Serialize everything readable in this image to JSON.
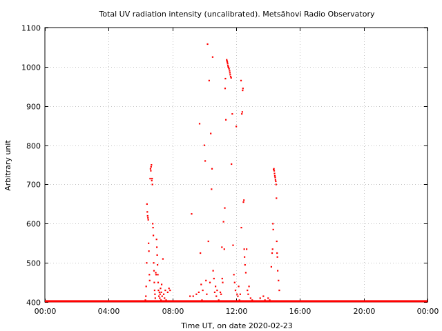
{
  "chart_data": {
    "type": "scatter",
    "title": "Total UV radiation intensity (uncalibrated). Metsähovi Radio Observatory",
    "xlabel": "Time UT, on date 2020-02-23",
    "ylabel": "Arbitrary unit",
    "xlim_hours": [
      0,
      24
    ],
    "ylim": [
      400,
      1100
    ],
    "x_ticks": [
      {
        "h": 0,
        "label": "00:00"
      },
      {
        "h": 4,
        "label": "04:00"
      },
      {
        "h": 8,
        "label": "08:00"
      },
      {
        "h": 12,
        "label": "12:00"
      },
      {
        "h": 16,
        "label": "16:00"
      },
      {
        "h": 20,
        "label": "20:00"
      },
      {
        "h": 24,
        "label": "00:00"
      }
    ],
    "y_ticks": [
      400,
      500,
      600,
      700,
      800,
      900,
      1000,
      1100
    ],
    "grid": true,
    "color": "#ff0000",
    "baseline": {
      "value": 402,
      "from_h": 0,
      "to_h": 24
    },
    "points": [
      [
        6.3,
        405
      ],
      [
        6.33,
        415
      ],
      [
        6.35,
        440
      ],
      [
        6.38,
        500
      ],
      [
        6.4,
        650
      ],
      [
        6.42,
        630
      ],
      [
        6.44,
        620
      ],
      [
        6.46,
        615
      ],
      [
        6.48,
        610
      ],
      [
        6.5,
        550
      ],
      [
        6.52,
        530
      ],
      [
        6.55,
        470
      ],
      [
        6.57,
        455
      ],
      [
        6.6,
        715
      ],
      [
        6.62,
        740
      ],
      [
        6.64,
        735
      ],
      [
        6.66,
        745
      ],
      [
        6.68,
        750
      ],
      [
        6.7,
        710
      ],
      [
        6.72,
        715
      ],
      [
        6.74,
        700
      ],
      [
        6.76,
        600
      ],
      [
        6.78,
        590
      ],
      [
        6.8,
        570
      ],
      [
        6.82,
        500
      ],
      [
        6.84,
        480
      ],
      [
        6.86,
        450
      ],
      [
        6.88,
        430
      ],
      [
        6.9,
        420
      ],
      [
        6.92,
        410
      ],
      [
        6.95,
        475
      ],
      [
        6.97,
        470
      ],
      [
        7.0,
        560
      ],
      [
        7.02,
        540
      ],
      [
        7.04,
        520
      ],
      [
        7.06,
        495
      ],
      [
        7.08,
        470
      ],
      [
        7.1,
        450
      ],
      [
        7.12,
        430
      ],
      [
        7.15,
        415
      ],
      [
        7.18,
        425
      ],
      [
        7.2,
        410
      ],
      [
        7.22,
        420
      ],
      [
        7.25,
        435
      ],
      [
        7.28,
        405
      ],
      [
        7.3,
        425
      ],
      [
        7.32,
        445
      ],
      [
        7.35,
        415
      ],
      [
        7.4,
        510
      ],
      [
        7.45,
        420
      ],
      [
        7.5,
        410
      ],
      [
        7.55,
        430
      ],
      [
        7.6,
        405
      ],
      [
        7.7,
        425
      ],
      [
        7.78,
        435
      ],
      [
        7.85,
        430
      ],
      [
        9.2,
        625
      ],
      [
        9.1,
        415
      ],
      [
        9.3,
        415
      ],
      [
        9.5,
        420
      ],
      [
        9.65,
        425
      ],
      [
        9.7,
        855
      ],
      [
        9.75,
        525
      ],
      [
        9.8,
        445
      ],
      [
        9.85,
        405
      ],
      [
        9.9,
        430
      ],
      [
        10.0,
        800
      ],
      [
        10.05,
        760
      ],
      [
        10.1,
        455
      ],
      [
        10.15,
        420
      ],
      [
        10.2,
        1058
      ],
      [
        10.25,
        555
      ],
      [
        10.3,
        965
      ],
      [
        10.35,
        450
      ],
      [
        10.4,
        830
      ],
      [
        10.45,
        688
      ],
      [
        10.48,
        740
      ],
      [
        10.52,
        1025
      ],
      [
        10.55,
        480
      ],
      [
        10.6,
        460
      ],
      [
        10.65,
        425
      ],
      [
        10.7,
        440
      ],
      [
        10.75,
        415
      ],
      [
        10.8,
        430
      ],
      [
        10.9,
        405
      ],
      [
        11.0,
        425
      ],
      [
        11.05,
        420
      ],
      [
        11.1,
        540
      ],
      [
        11.12,
        460
      ],
      [
        11.15,
        450
      ],
      [
        11.2,
        605
      ],
      [
        11.25,
        535
      ],
      [
        11.28,
        640
      ],
      [
        11.3,
        945
      ],
      [
        11.32,
        970
      ],
      [
        11.35,
        865
      ],
      [
        11.4,
        1018
      ],
      [
        11.42,
        1015
      ],
      [
        11.44,
        1012
      ],
      [
        11.46,
        1008
      ],
      [
        11.48,
        1003
      ],
      [
        11.5,
        1000
      ],
      [
        11.52,
        998
      ],
      [
        11.55,
        995
      ],
      [
        11.58,
        990
      ],
      [
        11.6,
        985
      ],
      [
        11.62,
        980
      ],
      [
        11.65,
        975
      ],
      [
        11.68,
        972
      ],
      [
        11.7,
        752
      ],
      [
        11.75,
        880
      ],
      [
        11.8,
        545
      ],
      [
        11.85,
        470
      ],
      [
        11.9,
        450
      ],
      [
        11.95,
        430
      ],
      [
        12.0,
        848
      ],
      [
        12.05,
        420
      ],
      [
        12.1,
        415
      ],
      [
        12.15,
        440
      ],
      [
        12.2,
        405
      ],
      [
        12.25,
        420
      ],
      [
        12.3,
        965
      ],
      [
        12.32,
        590
      ],
      [
        12.35,
        880
      ],
      [
        12.38,
        885
      ],
      [
        12.4,
        940
      ],
      [
        12.42,
        945
      ],
      [
        12.45,
        655
      ],
      [
        12.48,
        660
      ],
      [
        12.5,
        535
      ],
      [
        12.52,
        515
      ],
      [
        12.55,
        495
      ],
      [
        12.6,
        475
      ],
      [
        12.65,
        535
      ],
      [
        12.7,
        430
      ],
      [
        12.75,
        420
      ],
      [
        12.8,
        440
      ],
      [
        12.9,
        410
      ],
      [
        13.0,
        405
      ],
      [
        13.5,
        410
      ],
      [
        13.7,
        415
      ],
      [
        13.8,
        405
      ],
      [
        14.0,
        410
      ],
      [
        14.1,
        405
      ],
      [
        14.2,
        490
      ],
      [
        14.25,
        525
      ],
      [
        14.28,
        535
      ],
      [
        14.3,
        600
      ],
      [
        14.32,
        585
      ],
      [
        14.34,
        738
      ],
      [
        14.36,
        740
      ],
      [
        14.38,
        735
      ],
      [
        14.4,
        728
      ],
      [
        14.42,
        722
      ],
      [
        14.44,
        718
      ],
      [
        14.46,
        712
      ],
      [
        14.48,
        708
      ],
      [
        14.5,
        700
      ],
      [
        14.52,
        665
      ],
      [
        14.54,
        555
      ],
      [
        14.56,
        525
      ],
      [
        14.58,
        515
      ],
      [
        14.6,
        480
      ],
      [
        14.65,
        455
      ],
      [
        14.7,
        430
      ]
    ]
  }
}
